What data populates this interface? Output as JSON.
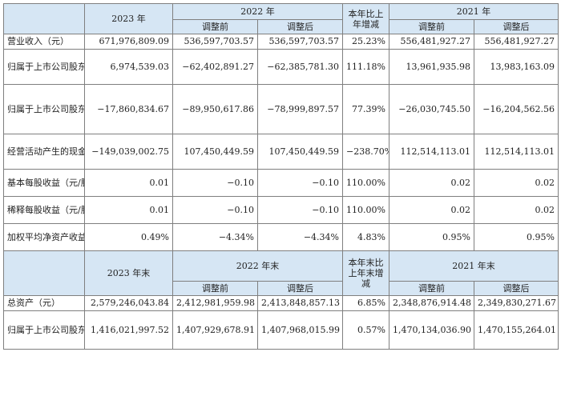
{
  "header1": {
    "y2023": "2023 年",
    "y2022": "2022 年",
    "change": "本年比上年增减",
    "y2021": "2021 年",
    "before": "调整前",
    "after": "调整后"
  },
  "rows1": [
    {
      "label": "营业收入（元）",
      "v2023": "671,976,809.09",
      "b2022": "536,597,703.57",
      "a2022": "536,597,703.57",
      "chg": "25.23%",
      "b2021": "556,481,927.27",
      "a2021": "556,481,927.27"
    },
    {
      "label": "归属于上市公司股东的净利润（元）",
      "v2023": "6,974,539.03",
      "b2022": "−62,402,891.27",
      "a2022": "−62,385,781.30",
      "chg": "111.18%",
      "b2021": "13,961,935.98",
      "a2021": "13,983,163.09"
    },
    {
      "label": "归属于上市公司股东的扣除非经常性损益的净利润（元）",
      "v2023": "−17,860,834.67",
      "b2022": "−89,950,617.86",
      "a2022": "−78,999,897.57",
      "chg": "77.39%",
      "b2021": "−26,030,745.50",
      "a2021": "−16,204,562.56"
    },
    {
      "label": "经营活动产生的现金流量净额（元）",
      "v2023": "−149,039,002.75",
      "b2022": "107,450,449.59",
      "a2022": "107,450,449.59",
      "chg": "−238.70%",
      "b2021": "112,514,113.01",
      "a2021": "112,514,113.01"
    },
    {
      "label": "基本每股收益（元/股）",
      "v2023": "0.01",
      "b2022": "−0.10",
      "a2022": "−0.10",
      "chg": "110.00%",
      "b2021": "0.02",
      "a2021": "0.02"
    },
    {
      "label": "稀释每股收益（元/股）",
      "v2023": "0.01",
      "b2022": "−0.10",
      "a2022": "−0.10",
      "chg": "110.00%",
      "b2021": "0.02",
      "a2021": "0.02"
    },
    {
      "label": "加权平均净资产收益率",
      "v2023": "0.49%",
      "b2022": "−4.34%",
      "a2022": "−4.34%",
      "chg": "4.83%",
      "b2021": "0.95%",
      "a2021": "0.95%"
    }
  ],
  "header2": {
    "y2023": "2023 年末",
    "y2022": "2022 年末",
    "change": "本年末比上年末增减",
    "y2021": "2021 年末",
    "before": "调整前",
    "after": "调整后"
  },
  "rows2": [
    {
      "label": "总资产（元）",
      "v2023": "2,579,246,043.84",
      "b2022": "2,412,981,959.98",
      "a2022": "2,413,848,857.13",
      "chg": "6.85%",
      "b2021": "2,348,876,914.48",
      "a2021": "2,349,830,271.67"
    },
    {
      "label": "归属于上市公司股东的净资产（元）",
      "v2023": "1,416,021,997.52",
      "b2022": "1,407,929,678.91",
      "a2022": "1,407,968,015.99",
      "chg": "0.57%",
      "b2021": "1,470,134,036.90",
      "a2021": "1,470,155,264.01"
    }
  ]
}
